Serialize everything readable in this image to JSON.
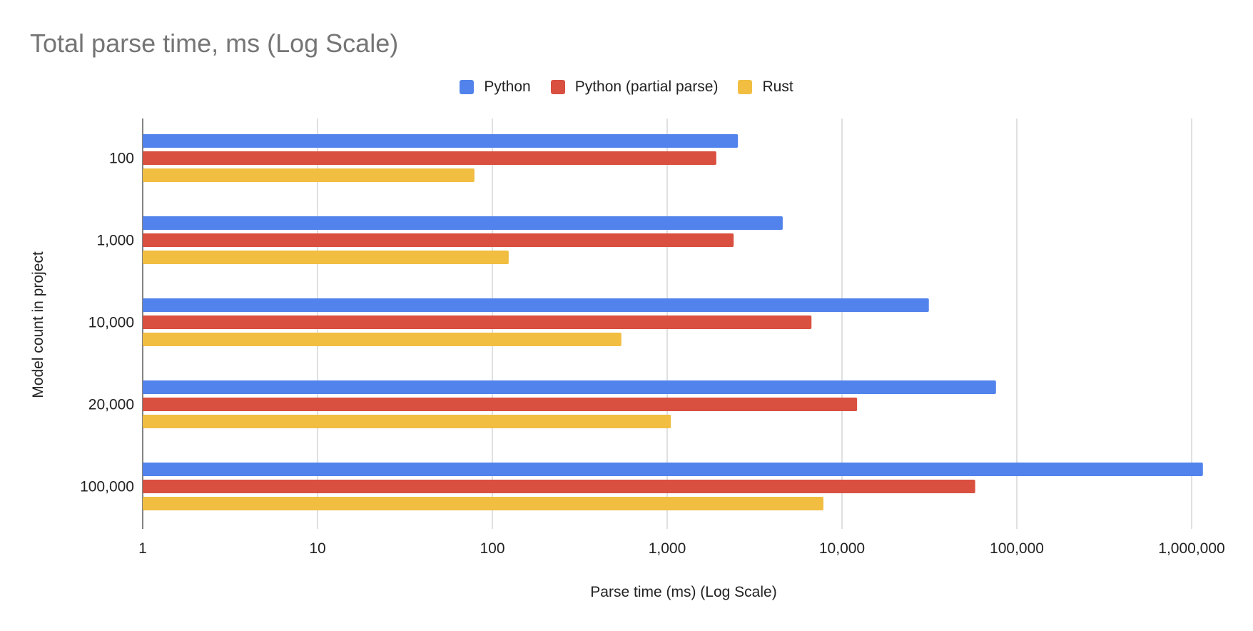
{
  "chart_data": {
    "type": "bar",
    "orientation": "horizontal",
    "title": "Total parse time, ms (Log Scale)",
    "xlabel": "Parse time (ms) (Log Scale)",
    "ylabel": "Model count in project",
    "x_scale": "log",
    "xlim": [
      1,
      1300000
    ],
    "x_ticks": [
      1,
      10,
      100,
      1000,
      10000,
      100000,
      1000000
    ],
    "x_tick_labels": [
      "1",
      "10",
      "100",
      "1,000",
      "10,000",
      "100,000",
      "1,000,000"
    ],
    "grid": true,
    "legend_position": "top",
    "categories": [
      "100",
      "1,000",
      "10,000",
      "20,000",
      "100,000"
    ],
    "series": [
      {
        "name": "Python",
        "color": "#5283ec",
        "values": [
          2540,
          4580,
          31400,
          76000,
          1160000
        ]
      },
      {
        "name": "Python (partial parse)",
        "color": "#d94f40",
        "values": [
          1910,
          2400,
          6690,
          12200,
          57800
        ]
      },
      {
        "name": "Rust",
        "color": "#f1be41",
        "values": [
          79,
          124,
          547,
          1050,
          7830
        ]
      }
    ]
  }
}
